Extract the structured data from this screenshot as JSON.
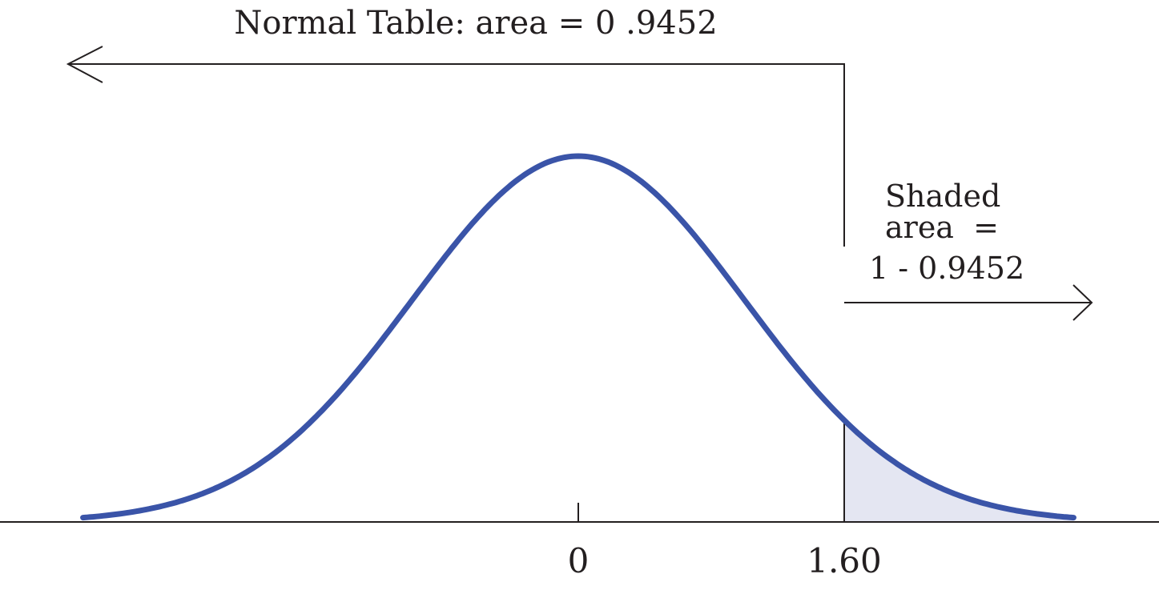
{
  "chart_data": {
    "type": "line",
    "title": "Normal Table: area = 0 .9452",
    "distribution": "standard normal",
    "mean": 0,
    "sd": 1,
    "x_range": [
      -3,
      3
    ],
    "shaded_from": 1.6,
    "tick_labels": [
      "0",
      "1.60"
    ],
    "ticks": [
      0,
      1.6
    ],
    "annotation": {
      "line1": "Shaded",
      "line2": "area  =",
      "line3": "1 - 0.9452"
    },
    "left_area": 0.9452,
    "right_area_expression": "1 - 0.9452",
    "colors": {
      "curve": "#3a54a8",
      "shade": "#e4e6f2",
      "ink": "#231f20"
    }
  }
}
